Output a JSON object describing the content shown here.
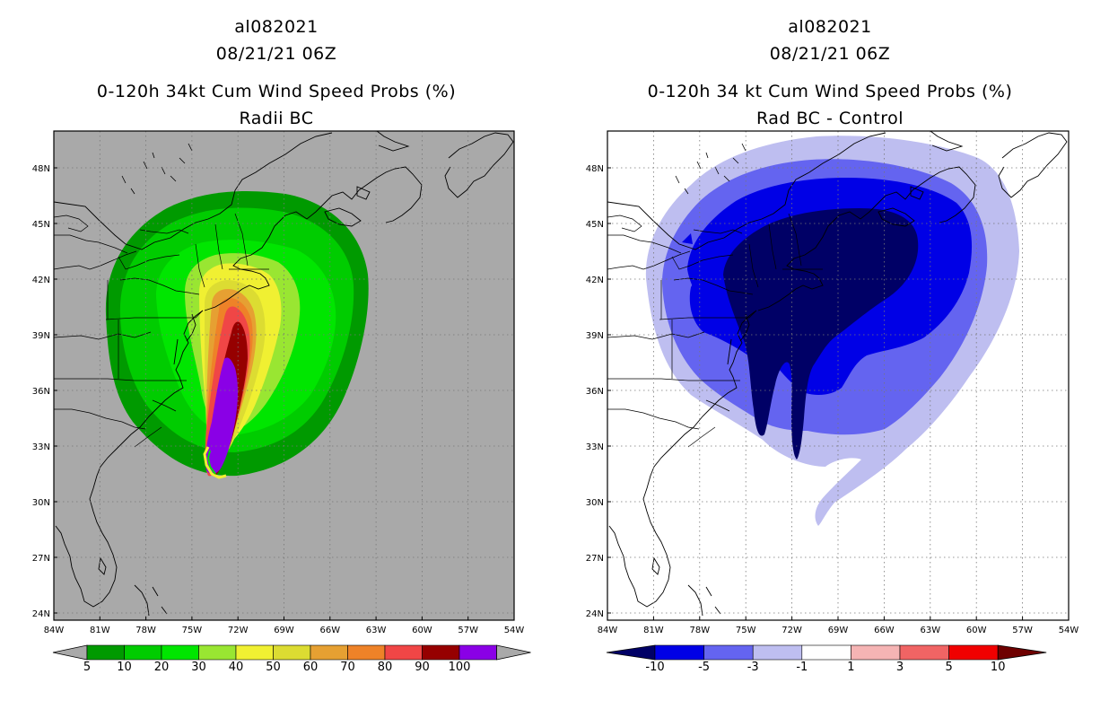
{
  "left_panel": {
    "title_line1": "al082021",
    "title_line2": "08/21/21 06Z",
    "title_line3": "0-120h 34kt Cum Wind Speed Probs (%)",
    "title_line4": "Radii BC",
    "colorbar_labels": [
      "5",
      "10",
      "20",
      "30",
      "40",
      "50",
      "60",
      "70",
      "80",
      "90",
      "100"
    ],
    "colorbar_colors": [
      "#009a00",
      "#00cc00",
      "#00e600",
      "#99e632",
      "#f0f032",
      "#dcdc32",
      "#e6a032",
      "#ee8228",
      "#f04646",
      "#960000",
      "#8a00e6"
    ],
    "background_color": "#a9a9a9"
  },
  "right_panel": {
    "title_line1": "al082021",
    "title_line2": "08/21/21 06Z",
    "title_line3": "0-120h 34 kt Cum Wind Speed Probs (%)",
    "title_line4": "Rad BC - Control",
    "colorbar_labels": [
      "-10",
      "-5",
      "-3",
      "-1",
      "1",
      "3",
      "5",
      "10"
    ],
    "colorbar_colors": [
      "#000066",
      "#0000e6",
      "#6464f0",
      "#bebef0",
      "#ffffff",
      "#f5b4b4",
      "#f06464",
      "#f00000",
      "#6e0000"
    ],
    "background_color": "#ffffff"
  },
  "axes": {
    "lat_labels": [
      "48N",
      "45N",
      "42N",
      "39N",
      "36N",
      "33N",
      "30N",
      "27N",
      "24N"
    ],
    "lon_labels": [
      "84W",
      "81W",
      "78W",
      "75W",
      "72W",
      "69W",
      "66W",
      "63W",
      "60W",
      "57W",
      "54W"
    ]
  },
  "chart_data": [
    {
      "type": "heatmap",
      "title": "0-120h 34kt Cum Wind Speed Probs (%) - Radii BC",
      "storm": "al082021",
      "valid": "08/21/21 06Z",
      "units": "%",
      "levels": [
        5,
        10,
        20,
        30,
        40,
        50,
        60,
        70,
        80,
        90,
        100
      ],
      "lon_range": [
        -84,
        -54
      ],
      "lat_range": [
        23,
        49
      ],
      "max_region": "along 72W-73W from 32N to 39N (>90%)"
    },
    {
      "type": "heatmap",
      "title": "0-120h 34 kt Cum Wind Speed Probs (%) - Rad BC - Control",
      "storm": "al082021",
      "valid": "08/21/21 06Z",
      "units": "%",
      "levels": [
        -10,
        -5,
        -3,
        -1,
        1,
        3,
        5,
        10
      ],
      "lon_range": [
        -84,
        -54
      ],
      "lat_range": [
        23,
        49
      ],
      "min_region": "New England / Mid-Atlantic coast (< -10)"
    }
  ]
}
